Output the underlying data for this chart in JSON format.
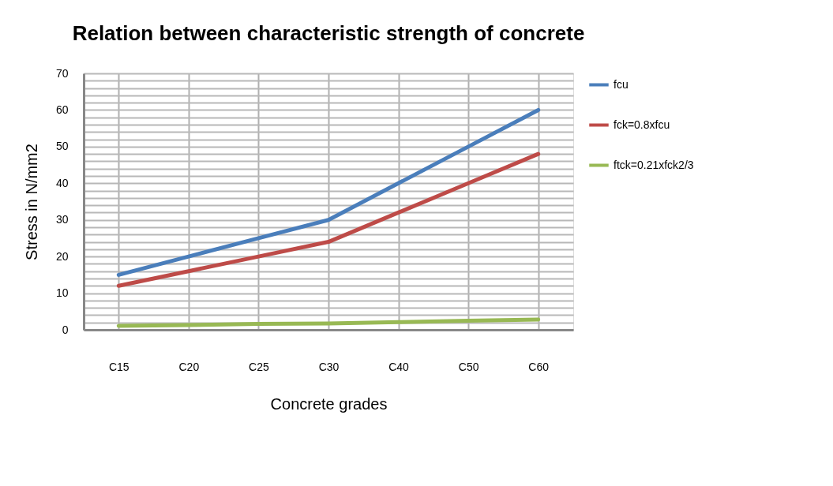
{
  "chart_data": {
    "type": "line",
    "title": "Relation between characteristic  strength of concrete",
    "xlabel": "Concrete grades",
    "ylabel": "Stress in N/mm2",
    "categories": [
      "C15",
      "C20",
      "C25",
      "C30",
      "C40",
      "C50",
      "C60"
    ],
    "series": [
      {
        "name": "fcu",
        "color": "#4a7ebb",
        "values": [
          15,
          20,
          25,
          30,
          40,
          50,
          60
        ]
      },
      {
        "name": "fck=0.8xfcu",
        "color": "#be4b48",
        "values": [
          12,
          16,
          20,
          24,
          32,
          40,
          48
        ]
      },
      {
        "name": "ftck=0.21xfck2/3",
        "color": "#98b954",
        "values": [
          1.1,
          1.3,
          1.6,
          1.7,
          2.1,
          2.5,
          2.8
        ]
      }
    ],
    "ylim": [
      0,
      70
    ],
    "yticks": [
      0,
      {
        "value": 2,
        "label": null
      },
      {
        "value": 4,
        "label": null
      },
      {
        "value": 6,
        "label": null
      },
      {
        "value": 8,
        "label": null
      },
      10,
      {
        "value": 12,
        "label": null
      },
      {
        "value": 14,
        "label": null
      },
      {
        "value": 16,
        "label": null
      },
      {
        "value": 18,
        "label": null
      },
      20,
      {
        "value": 22,
        "label": null
      },
      {
        "value": 24,
        "label": null
      },
      {
        "value": 26,
        "label": null
      },
      {
        "value": 28,
        "label": null
      },
      30,
      {
        "value": 32,
        "label": null
      },
      {
        "value": 34,
        "label": null
      },
      {
        "value": 36,
        "label": null
      },
      {
        "value": 38,
        "label": null
      },
      40,
      {
        "value": 42,
        "label": null
      },
      {
        "value": 44,
        "label": null
      },
      {
        "value": 46,
        "label": null
      },
      {
        "value": 48,
        "label": null
      },
      50,
      {
        "value": 52,
        "label": null
      },
      {
        "value": 54,
        "label": null
      },
      {
        "value": 56,
        "label": null
      },
      {
        "value": 58,
        "label": null
      },
      60,
      {
        "value": 62,
        "label": null
      },
      {
        "value": 64,
        "label": null
      },
      {
        "value": 66,
        "label": null
      },
      {
        "value": 68,
        "label": null
      },
      70
    ],
    "grid": true,
    "legend": "right",
    "marker": "none",
    "line_style": "solid"
  }
}
